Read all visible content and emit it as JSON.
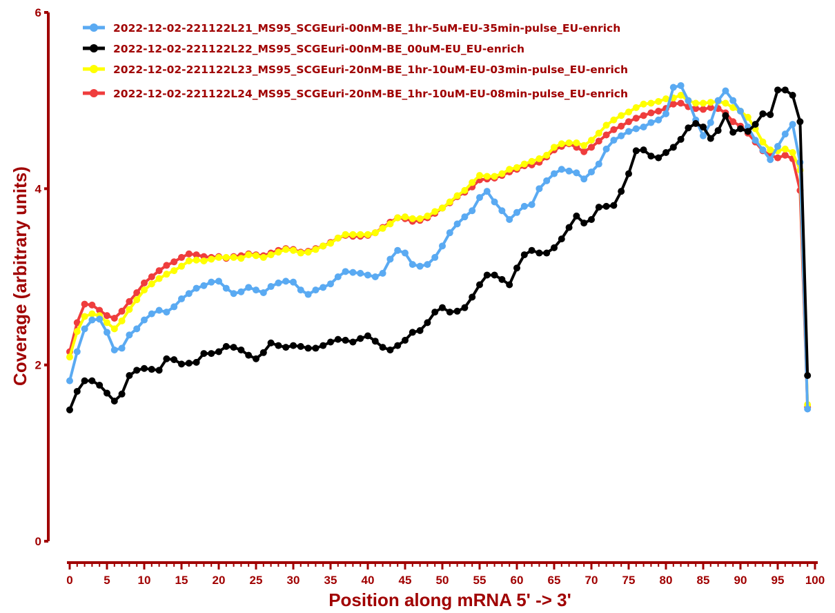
{
  "chart_data": {
    "type": "line",
    "title": "",
    "xlabel": "Position along mRNA 5' -> 3'",
    "ylabel": "Coverage (arbitrary units)",
    "xlim": [
      0,
      100
    ],
    "ylim": [
      0,
      6
    ],
    "x_ticks": [
      0,
      5,
      10,
      15,
      20,
      25,
      30,
      35,
      40,
      45,
      50,
      55,
      60,
      65,
      70,
      75,
      80,
      85,
      90,
      95,
      100
    ],
    "y_ticks": [
      0,
      2,
      4,
      6
    ],
    "grid": false,
    "legend_position": "top-left",
    "axis_color": "#a00000",
    "x": [
      0,
      1,
      2,
      3,
      4,
      5,
      6,
      7,
      8,
      9,
      10,
      11,
      12,
      13,
      14,
      15,
      16,
      17,
      18,
      19,
      20,
      21,
      22,
      23,
      24,
      25,
      26,
      27,
      28,
      29,
      30,
      31,
      32,
      33,
      34,
      35,
      36,
      37,
      38,
      39,
      40,
      41,
      42,
      43,
      44,
      45,
      46,
      47,
      48,
      49,
      50,
      51,
      52,
      53,
      54,
      55,
      56,
      57,
      58,
      59,
      60,
      61,
      62,
      63,
      64,
      65,
      66,
      67,
      68,
      69,
      70,
      71,
      72,
      73,
      74,
      75,
      76,
      77,
      78,
      79,
      80,
      81,
      82,
      83,
      84,
      85,
      86,
      87,
      88,
      89,
      90,
      91,
      92,
      93,
      94,
      95,
      96,
      97,
      98,
      99
    ],
    "series": [
      {
        "name": "2022-12-02-221122L21_MS95_SCGEuri-00nM-BE_1hr-5uM-EU-35min-pulse_EU-enrich",
        "color": "#5aaaf2",
        "values": [
          1.82,
          2.15,
          2.41,
          2.51,
          2.52,
          2.37,
          2.17,
          2.19,
          2.34,
          2.41,
          2.51,
          2.58,
          2.62,
          2.6,
          2.66,
          2.75,
          2.81,
          2.87,
          2.9,
          2.94,
          2.95,
          2.87,
          2.81,
          2.83,
          2.88,
          2.85,
          2.82,
          2.89,
          2.93,
          2.95,
          2.94,
          2.85,
          2.8,
          2.85,
          2.88,
          2.92,
          3.0,
          3.06,
          3.05,
          3.04,
          3.02,
          3.0,
          3.04,
          3.2,
          3.3,
          3.27,
          3.14,
          3.12,
          3.14,
          3.22,
          3.35,
          3.5,
          3.6,
          3.68,
          3.75,
          3.9,
          3.97,
          3.85,
          3.75,
          3.65,
          3.73,
          3.8,
          3.82,
          4.0,
          4.09,
          4.17,
          4.22,
          4.2,
          4.18,
          4.11,
          4.19,
          4.28,
          4.45,
          4.55,
          4.6,
          4.65,
          4.68,
          4.7,
          4.75,
          4.78,
          4.85,
          5.15,
          5.17,
          5.0,
          4.78,
          4.6,
          4.75,
          5.0,
          5.11,
          5.0,
          4.88,
          4.7,
          4.55,
          4.44,
          4.33,
          4.48,
          4.62,
          4.73,
          4.3,
          1.5
        ]
      },
      {
        "name": "2022-12-02-221122L22_MS95_SCGEuri-00nM-BE_00uM-EU_EU-enrich",
        "color": "#000000",
        "values": [
          1.49,
          1.7,
          1.82,
          1.82,
          1.77,
          1.68,
          1.59,
          1.67,
          1.88,
          1.94,
          1.96,
          1.95,
          1.94,
          2.07,
          2.06,
          2.01,
          2.02,
          2.03,
          2.13,
          2.13,
          2.15,
          2.21,
          2.2,
          2.17,
          2.11,
          2.07,
          2.14,
          2.25,
          2.22,
          2.2,
          2.22,
          2.21,
          2.19,
          2.19,
          2.22,
          2.26,
          2.29,
          2.28,
          2.26,
          2.3,
          2.33,
          2.27,
          2.2,
          2.17,
          2.22,
          2.28,
          2.37,
          2.39,
          2.48,
          2.6,
          2.65,
          2.6,
          2.61,
          2.65,
          2.77,
          2.91,
          3.02,
          3.02,
          2.97,
          2.91,
          3.1,
          3.25,
          3.3,
          3.27,
          3.27,
          3.33,
          3.43,
          3.56,
          3.69,
          3.61,
          3.65,
          3.79,
          3.8,
          3.81,
          3.97,
          4.17,
          4.43,
          4.44,
          4.37,
          4.35,
          4.41,
          4.47,
          4.56,
          4.69,
          4.74,
          4.7,
          4.57,
          4.66,
          4.83,
          4.64,
          4.68,
          4.65,
          4.73,
          4.85,
          4.84,
          5.12,
          5.12,
          5.06,
          4.76,
          1.88
        ]
      },
      {
        "name": "2022-12-02-221122L23_MS95_SCGEuri-20nM-BE_1hr-10uM-EU-03min-pulse_EU-enrich",
        "color": "#ffff00",
        "values": [
          2.09,
          2.38,
          2.55,
          2.58,
          2.56,
          2.48,
          2.41,
          2.5,
          2.63,
          2.74,
          2.85,
          2.92,
          2.98,
          3.03,
          3.07,
          3.12,
          3.18,
          3.19,
          3.18,
          3.2,
          3.22,
          3.22,
          3.22,
          3.21,
          3.25,
          3.24,
          3.22,
          3.25,
          3.28,
          3.31,
          3.3,
          3.27,
          3.28,
          3.31,
          3.35,
          3.38,
          3.44,
          3.48,
          3.48,
          3.48,
          3.48,
          3.5,
          3.55,
          3.6,
          3.67,
          3.68,
          3.66,
          3.66,
          3.69,
          3.74,
          3.78,
          3.85,
          3.92,
          3.98,
          4.07,
          4.15,
          4.14,
          4.14,
          4.17,
          4.22,
          4.24,
          4.28,
          4.31,
          4.34,
          4.38,
          4.47,
          4.51,
          4.52,
          4.52,
          4.49,
          4.55,
          4.63,
          4.72,
          4.78,
          4.83,
          4.87,
          4.92,
          4.96,
          4.97,
          4.99,
          5.02,
          5.03,
          5.06,
          5.0,
          4.97,
          4.97,
          4.98,
          4.99,
          4.97,
          4.92,
          4.88,
          4.81,
          4.68,
          4.53,
          4.44,
          4.43,
          4.45,
          4.41,
          4.21,
          1.55
        ]
      },
      {
        "name": "2022-12-02-221122L24_MS95_SCGEuri-20nM-BE_1hr-10uM-EU-08min-pulse_EU-enrich",
        "color": "#ef3d3d",
        "values": [
          2.15,
          2.48,
          2.69,
          2.68,
          2.62,
          2.56,
          2.53,
          2.61,
          2.72,
          2.82,
          2.93,
          3.0,
          3.07,
          3.13,
          3.17,
          3.22,
          3.26,
          3.25,
          3.23,
          3.22,
          3.23,
          3.21,
          3.23,
          3.24,
          3.26,
          3.25,
          3.24,
          3.27,
          3.3,
          3.32,
          3.31,
          3.28,
          3.29,
          3.32,
          3.35,
          3.39,
          3.44,
          3.47,
          3.46,
          3.46,
          3.47,
          3.5,
          3.56,
          3.62,
          3.67,
          3.66,
          3.63,
          3.64,
          3.67,
          3.72,
          3.78,
          3.84,
          3.91,
          3.96,
          4.02,
          4.1,
          4.11,
          4.12,
          4.15,
          4.19,
          4.22,
          4.26,
          4.27,
          4.3,
          4.36,
          4.44,
          4.48,
          4.51,
          4.47,
          4.42,
          4.47,
          4.54,
          4.61,
          4.67,
          4.71,
          4.76,
          4.8,
          4.83,
          4.86,
          4.88,
          4.91,
          4.96,
          4.97,
          4.93,
          4.91,
          4.9,
          4.92,
          4.91,
          4.86,
          4.76,
          4.71,
          4.63,
          4.53,
          4.43,
          4.38,
          4.35,
          4.38,
          4.34,
          3.98,
          1.52
        ]
      }
    ]
  }
}
